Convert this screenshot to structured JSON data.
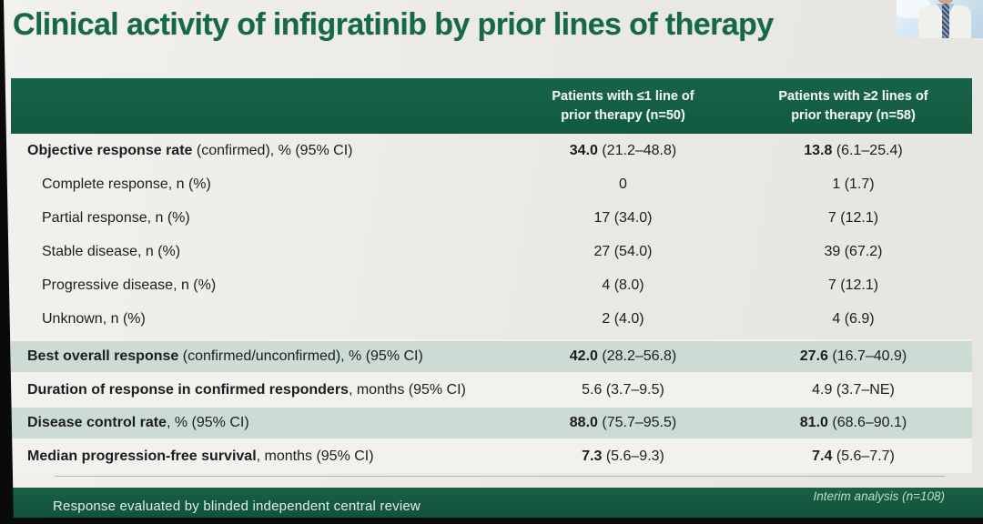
{
  "title": "Clinical activity of infigratinib by prior lines of therapy",
  "header": {
    "col1_line1": "Patients with ≤1 line of",
    "col1_line2": "prior therapy (n=50)",
    "col2_line1": "Patients with ≥2 lines of",
    "col2_line2": "prior therapy (n=58)"
  },
  "rows": [
    {
      "label_strong": "Objective response rate",
      "label_rest": " (confirmed), % (95% CI)",
      "c1_strong": "34.0",
      "c1_rest": " (21.2–48.8)",
      "c2_strong": "13.8",
      "c2_rest": " (6.1–25.4)"
    },
    {
      "label_rest": "Complete response, n (%)",
      "c1_rest": "0",
      "c2_rest": "1 (1.7)"
    },
    {
      "label_rest": "Partial response, n (%)",
      "c1_rest": "17 (34.0)",
      "c2_rest": "7 (12.1)"
    },
    {
      "label_rest": "Stable disease, n (%)",
      "c1_rest": "27 (54.0)",
      "c2_rest": "39 (67.2)"
    },
    {
      "label_rest": "Progressive disease, n (%)",
      "c1_rest": "4 (8.0)",
      "c2_rest": "7 (12.1)"
    },
    {
      "label_rest": "Unknown, n (%)",
      "c1_rest": "2 (4.0)",
      "c2_rest": "4 (6.9)"
    },
    {
      "label_strong": "Best overall response",
      "label_rest": " (confirmed/unconfirmed), % (95% CI)",
      "c1_strong": "42.0",
      "c1_rest": " (28.2–56.8)",
      "c2_strong": "27.6",
      "c2_rest": " (16.7–40.9)"
    },
    {
      "label_strong": "Duration of response in confirmed responders",
      "label_rest": ", months (95% CI)",
      "c1_rest": "5.6 (3.7–9.5)",
      "c2_rest": "4.9 (3.7–NE)"
    },
    {
      "label_strong": "Disease control rate",
      "label_rest": ", % (95% CI)",
      "c1_strong": "88.0",
      "c1_rest": " (75.7–95.5)",
      "c2_strong": "81.0",
      "c2_rest": " (68.6–90.1)"
    },
    {
      "label_strong": "Median progression-free survival",
      "label_rest": ", months (95% CI)",
      "c1_strong": "7.3",
      "c1_rest": " (5.6–9.3)",
      "c2_strong": "7.4",
      "c2_rest": " (5.6–7.7)"
    }
  ],
  "footer": {
    "left": "Response evaluated by blinded independent central review",
    "right": "Interim analysis (n=108)"
  },
  "colors": {
    "title_green": "#166848",
    "header_green": "#135c41",
    "footer_green": "#14573c",
    "row_shade": "#ccdbd3",
    "slide_bg": "#ebe9e5"
  }
}
